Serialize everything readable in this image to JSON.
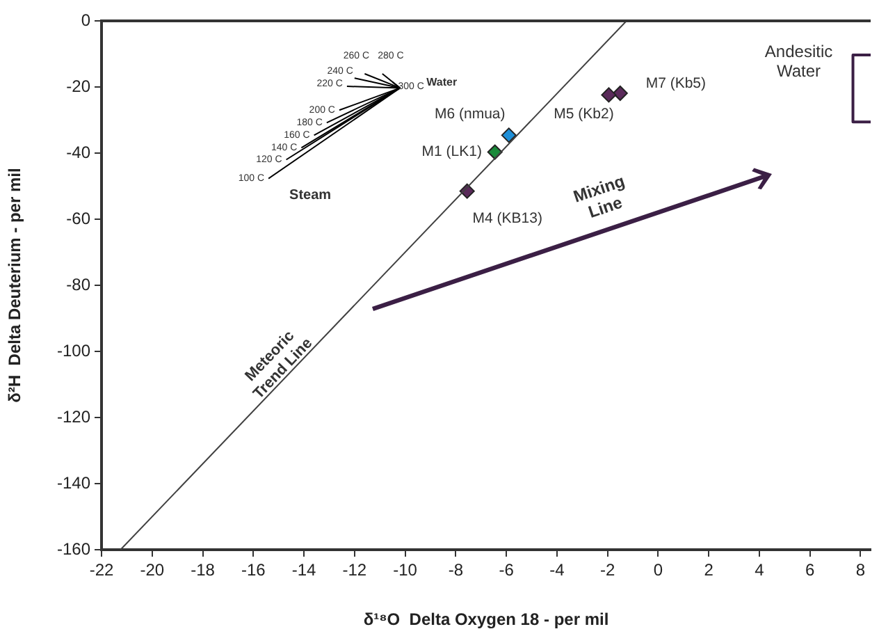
{
  "chart_data": {
    "type": "scatter",
    "xlabel": "δ¹⁸O  Delta Oxygen 18 - per mil",
    "ylabel": "δ²H  Delta Deuterium - per mil",
    "xlim": [
      -22,
      8.4
    ],
    "xticks": [
      -22,
      -20,
      -18,
      -16,
      -14,
      -12,
      -10,
      -8,
      -6,
      -4,
      -2,
      0,
      2,
      4,
      6,
      8
    ],
    "ylim": [
      -160,
      0
    ],
    "yticks": [
      -160,
      -140,
      -120,
      -100,
      -80,
      -60,
      -40,
      -20,
      0
    ],
    "grid": false,
    "legend": false,
    "series": [
      {
        "name": "Meteoric Trend Line",
        "type": "line",
        "color": "#404040",
        "x": [
          -21.25,
          -1.25
        ],
        "values": [
          -160,
          0
        ]
      },
      {
        "name": "Andesitic Water",
        "type": "line",
        "color": "#3b1f45",
        "x": [
          8.4,
          7.7,
          7.7,
          8.4
        ],
        "values": [
          -10.3,
          -10.3,
          -30.6,
          -30.6
        ]
      },
      {
        "name": "100 C",
        "type": "line",
        "color": "#000000",
        "x": [
          -15.4,
          -10.2
        ],
        "values": [
          -47.7,
          -20.3
        ]
      },
      {
        "name": "120 C",
        "type": "line",
        "color": "#000000",
        "x": [
          -14.7,
          -10.2
        ],
        "values": [
          -42,
          -20.3
        ]
      },
      {
        "name": "140 C",
        "type": "line",
        "color": "#000000",
        "x": [
          -14.1,
          -10.2
        ],
        "values": [
          -38.4,
          -20.3
        ]
      },
      {
        "name": "160 C",
        "type": "line",
        "color": "#000000",
        "x": [
          -13.6,
          -10.2
        ],
        "values": [
          -34.6,
          -20.3
        ]
      },
      {
        "name": "180 C",
        "type": "line",
        "color": "#000000",
        "x": [
          -13.1,
          -10.2
        ],
        "values": [
          -30.8,
          -20.3
        ]
      },
      {
        "name": "200 C",
        "type": "line",
        "color": "#000000",
        "x": [
          -12.6,
          -10.2
        ],
        "values": [
          -27,
          -20.3
        ]
      },
      {
        "name": "220 C",
        "type": "line",
        "color": "#000000",
        "x": [
          -12.3,
          -10.2
        ],
        "values": [
          -19.8,
          -20.3
        ]
      },
      {
        "name": "240 C",
        "type": "line",
        "color": "#000000",
        "x": [
          -12,
          -10.2
        ],
        "values": [
          -17.3,
          -20.3
        ]
      },
      {
        "name": "260 C",
        "type": "line",
        "color": "#000000",
        "x": [
          -11.6,
          -10.2
        ],
        "values": [
          -16,
          -20.3
        ]
      },
      {
        "name": "280 C",
        "type": "line",
        "color": "#000000",
        "x": [
          -10.9,
          -10.2
        ],
        "values": [
          -16,
          -20.3
        ]
      },
      {
        "name": "300 C",
        "type": "line",
        "color": "#000000",
        "x": [
          -10.5,
          -10.2
        ],
        "values": [
          -18.5,
          -20.3
        ]
      },
      {
        "name": "M6 (nmua)",
        "type": "scatter",
        "marker": "diamond",
        "color": "#1e8fd8",
        "x": [
          -5.9
        ],
        "values": [
          -34.6
        ]
      },
      {
        "name": "M1 (LK1)",
        "type": "scatter",
        "marker": "diamond",
        "color": "#1a8a3a",
        "x": [
          -6.45
        ],
        "values": [
          -39.7
        ]
      },
      {
        "name": "M4 (KB13)",
        "type": "scatter",
        "marker": "diamond",
        "color": "#5a2a5a",
        "x": [
          -7.55
        ],
        "values": [
          -51.5
        ]
      },
      {
        "name": "M5 (Kb2)",
        "type": "scatter",
        "marker": "diamond",
        "color": "#5a2a5a",
        "x": [
          -1.95
        ],
        "values": [
          -22.4
        ]
      },
      {
        "name": "M7 (Kb5)",
        "type": "scatter",
        "marker": "diamond",
        "color": "#5a2a5a",
        "x": [
          -1.5
        ],
        "values": [
          -21.9
        ]
      }
    ],
    "annotations": [
      "Water",
      "Steam",
      "Mixing Line"
    ]
  }
}
